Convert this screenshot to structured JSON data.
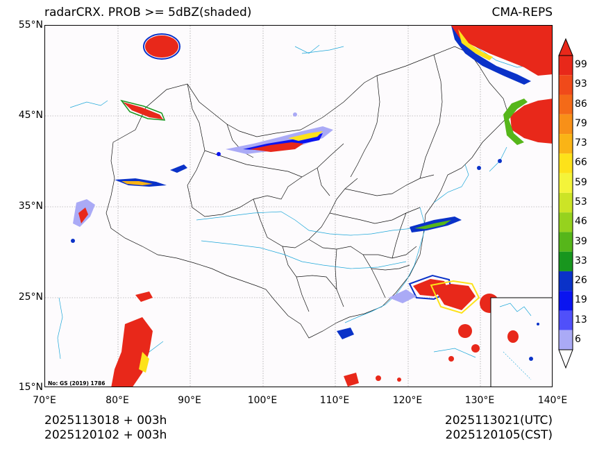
{
  "title": {
    "left": "radarCRX. PROB >= 5dBZ(shaded)",
    "right": "CMA-REPS"
  },
  "axes": {
    "lat_labels": [
      "55°N",
      "45°N",
      "35°N",
      "25°N",
      "15°N"
    ],
    "lon_labels": [
      "70°E",
      "80°E",
      "90°E",
      "100°E",
      "110°E",
      "120°E",
      "130°E",
      "140°E"
    ]
  },
  "map_note": "No: GS (2019) 1786",
  "colorbar": {
    "labels": [
      "99",
      "93",
      "86",
      "79",
      "73",
      "66",
      "59",
      "53",
      "46",
      "39",
      "33",
      "26",
      "19",
      "13",
      "6"
    ],
    "colors": [
      "#e8281a",
      "#f04a1a",
      "#f46a18",
      "#f89018",
      "#fab416",
      "#fde21a",
      "#f4f43a",
      "#cce426",
      "#96d21e",
      "#56b61a",
      "#18961e",
      "#0a32c8",
      "#0a14f0",
      "#5050fa",
      "#aaaaf6"
    ],
    "top_arrow_color": "#e8281a",
    "bottom_arrow_color": "#ffffff"
  },
  "footer": {
    "left_line1": "2025113018  +  003h",
    "left_line2": "2025120102  +  003h",
    "right_line1": "2025113021(UTC)",
    "right_line2": "2025120105(CST)"
  }
}
